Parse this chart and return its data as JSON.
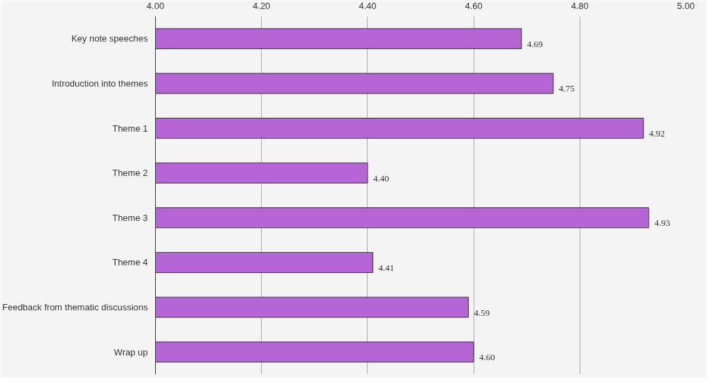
{
  "chart_data": {
    "type": "bar",
    "orientation": "horizontal",
    "categories": [
      "Key note speeches",
      "Introduction into themes",
      "Theme 1",
      "Theme 2",
      "Theme 3",
      "Theme 4",
      "Feedback from thematic discussions",
      "Wrap up"
    ],
    "values": [
      4.69,
      4.75,
      4.92,
      4.4,
      4.93,
      4.41,
      4.59,
      4.6
    ],
    "value_labels": [
      "4.69",
      "4.75",
      "4.92",
      "4.40",
      "4.93",
      "4.41",
      "4.59",
      "4.60"
    ],
    "color": "#b565d6",
    "xlim": [
      4.0,
      5.0
    ],
    "xticks": [
      {
        "value": 4.0,
        "label": "4.00"
      },
      {
        "value": 4.2,
        "label": "4.20"
      },
      {
        "value": 4.4,
        "label": "4.40"
      },
      {
        "value": 4.6,
        "label": "4.60"
      },
      {
        "value": 4.8,
        "label": "4.80"
      },
      {
        "value": 5.0,
        "label": "5.00"
      }
    ],
    "grid": "x"
  }
}
